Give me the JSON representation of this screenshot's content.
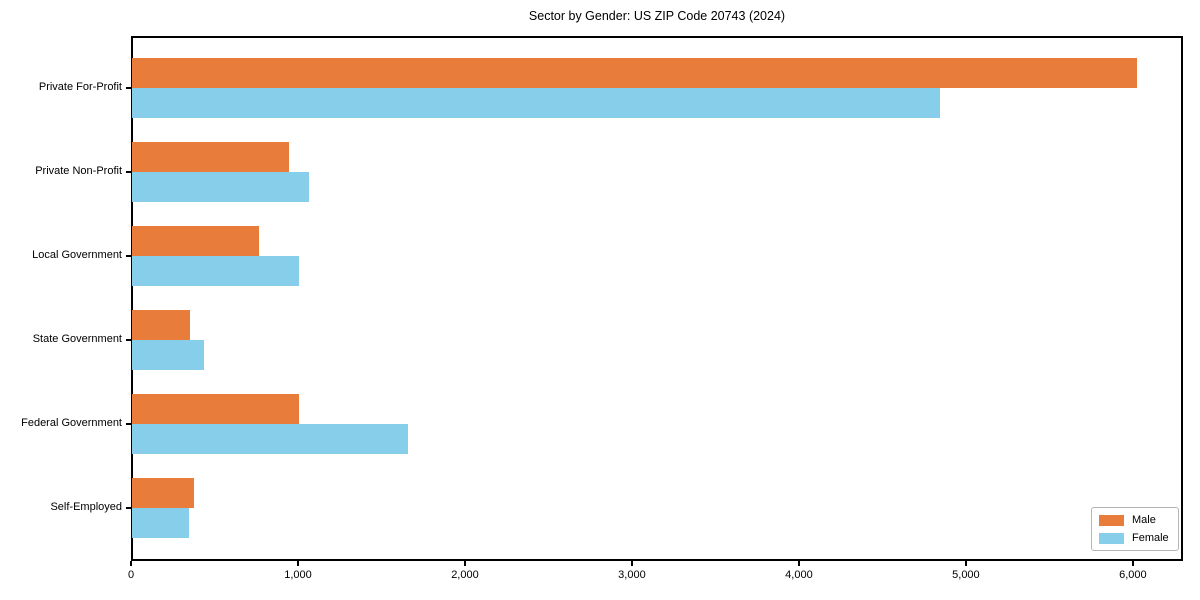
{
  "chart_data": {
    "type": "bar",
    "orientation": "horizontal",
    "title": "Sector by Gender: US ZIP Code 20743 (2024)",
    "categories": [
      "Private For-Profit",
      "Private Non-Profit",
      "Local Government",
      "State Government",
      "Federal Government",
      "Self-Employed"
    ],
    "series": [
      {
        "name": "Male",
        "color": "#E87C3B",
        "values": [
          6020,
          940,
          760,
          350,
          1000,
          370
        ]
      },
      {
        "name": "Female",
        "color": "#87CEEB",
        "values": [
          4840,
          1060,
          1000,
          430,
          1650,
          340
        ]
      }
    ],
    "xlabel": "",
    "ylabel": "",
    "xlim": [
      0,
      6300
    ],
    "xticks": [
      0,
      1000,
      2000,
      3000,
      4000,
      5000,
      6000
    ],
    "xtick_labels": [
      "0",
      "1,000",
      "2,000",
      "3,000",
      "4,000",
      "5,000",
      "6,000"
    ],
    "grid": false,
    "legend": {
      "position": "lower right",
      "entries": [
        "Male",
        "Female"
      ]
    }
  },
  "colors": {
    "male": "#E87C3B",
    "female": "#87CEEB",
    "spine": "#000000",
    "background": "#FFFFFF",
    "legend_border": "#B5B5B5"
  }
}
